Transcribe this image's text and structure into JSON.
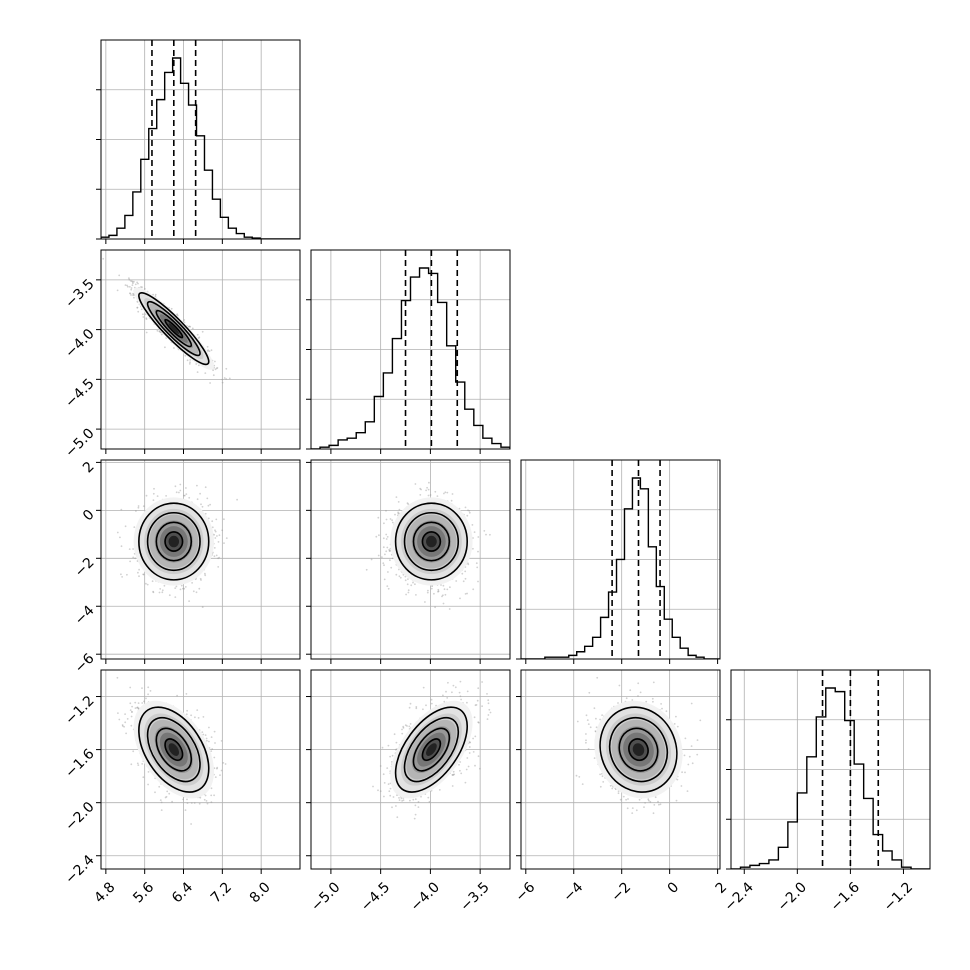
{
  "chart_data": {
    "type": "corner",
    "n_params": 4,
    "grid": true,
    "colors": {
      "line": "#000000",
      "grid": "#b0b0b0",
      "sample": "#9a9a9a",
      "density": "#000000"
    },
    "params": [
      {
        "center": 6.2,
        "std": 0.36,
        "q16": 5.75,
        "q50": 6.2,
        "q84": 6.65,
        "range": [
          4.7,
          8.8
        ],
        "ticks": [
          4.8,
          5.6,
          6.4,
          7.2,
          8.0
        ],
        "tick_labels": [
          "4.8",
          "5.6",
          "6.4",
          "7.2",
          "8.0"
        ]
      },
      {
        "center": -3.99,
        "std": 0.18,
        "q16": -4.25,
        "q50": -3.99,
        "q84": -3.73,
        "range": [
          -5.2,
          -3.2
        ],
        "ticks": [
          -5.0,
          -4.5,
          -4.0,
          -3.5
        ],
        "tick_labels": [
          "−5.0",
          "−4.5",
          "−4.0",
          "−3.5"
        ]
      },
      {
        "center": -1.3,
        "std": 0.8,
        "q16": -2.4,
        "q50": -1.3,
        "q84": -0.4,
        "range": [
          -6.2,
          2.1
        ],
        "ticks": [
          -6,
          -4,
          -2,
          0,
          2
        ],
        "tick_labels": [
          "−6",
          "−4",
          "−2",
          "0",
          "2"
        ]
      },
      {
        "center": -1.6,
        "std": 0.16,
        "q16": -1.81,
        "q50": -1.6,
        "q84": -1.39,
        "range": [
          -2.5,
          -1.0
        ],
        "ticks": [
          -2.4,
          -2.0,
          -1.6,
          -1.2
        ],
        "tick_labels": [
          "−2.4",
          "−2.0",
          "−1.6",
          "−1.2"
        ]
      }
    ],
    "histograms": [
      [
        0.01,
        0.02,
        0.06,
        0.13,
        0.26,
        0.44,
        0.61,
        0.77,
        0.92,
        1.0,
        0.86,
        0.74,
        0.57,
        0.38,
        0.22,
        0.12,
        0.06,
        0.03,
        0.01,
        0.005,
        0.0,
        0.0,
        0.0,
        0.0,
        0.0
      ],
      [
        0.0,
        0.01,
        0.02,
        0.05,
        0.06,
        0.09,
        0.15,
        0.29,
        0.42,
        0.61,
        0.82,
        0.95,
        1.0,
        0.97,
        0.81,
        0.57,
        0.37,
        0.22,
        0.13,
        0.06,
        0.03,
        0.01
      ],
      [
        0.0,
        0.0,
        0.0,
        0.01,
        0.01,
        0.01,
        0.02,
        0.04,
        0.07,
        0.12,
        0.23,
        0.37,
        0.55,
        0.83,
        1.0,
        0.94,
        0.62,
        0.4,
        0.22,
        0.12,
        0.06,
        0.02,
        0.01,
        0.0,
        0.0
      ],
      [
        0.0,
        0.01,
        0.02,
        0.03,
        0.05,
        0.12,
        0.26,
        0.42,
        0.62,
        0.84,
        1.0,
        0.98,
        0.82,
        0.58,
        0.39,
        0.19,
        0.1,
        0.05,
        0.01,
        0.0,
        0.0
      ]
    ],
    "correlations": [
      [
        1,
        -0.92,
        0.0,
        -0.45
      ],
      [
        -0.92,
        1,
        0.0,
        0.55
      ],
      [
        0.0,
        0.0,
        1,
        -0.1
      ],
      [
        -0.45,
        0.55,
        -0.1,
        1
      ]
    ],
    "contour_levels": [
      0.5,
      1.0,
      1.5,
      2.0
    ]
  }
}
